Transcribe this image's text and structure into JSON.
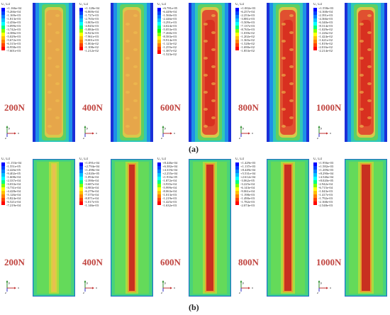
{
  "figure": {
    "caption_a": "(a)",
    "caption_b": "(b)",
    "legend_title": "U, U2",
    "axis_labels": {
      "y": "y",
      "x": "x",
      "z": "z"
    },
    "top_row": [
      {
        "load": "200N",
        "values": [
          "+1.166e-04",
          "-5.266e-04",
          "-1.169e-03",
          "-1.813e-03",
          "-2.456e-03",
          "-3.099e-03",
          "-3.742e-03",
          "-4.386e-03",
          "-5.029e-03",
          "-5.672e-03",
          "-6.315e-03",
          "-6.958e-03",
          "-7.601e-03"
        ]
      },
      {
        "load": "400N",
        "values": [
          "+1.128e-04",
          "-6.869e-04",
          "-1.727e-03",
          "-2.765e-03",
          "-3.805e-03",
          "-4.845e-03",
          "-5.884e-03",
          "-6.923e-03",
          "-7.961e-03",
          "-9.001e-03",
          "-1.004e-02",
          "-1.108e-02",
          "-1.212e-02"
        ]
      },
      {
        "load": "600N",
        "values": [
          "+6.781e-05",
          "-6.449e-04",
          "-1.560e-03",
          "-2.446e-03",
          "-3.291e-03",
          "-4.024e-03",
          "-5.053e-03",
          "-7.260e-03",
          "-8.583e-03",
          "-9.914e-03",
          "-1.123e-02",
          "-1.255e-02",
          "-1.387e-02",
          "-1.523e-02"
        ]
      },
      {
        "load": "800N",
        "values": [
          "+1.002e-03",
          "-6.257e-04",
          "-2.253e-03",
          "-3.881e-03",
          "-5.509e-03",
          "-7.137e-03",
          "-8.765e-03",
          "-1.039e-02",
          "-1.202e-02",
          "-1.365e-02",
          "-1.528e-02",
          "-1.690e-02",
          "-1.853e-02"
        ]
      },
      {
        "load": "1000N",
        "values": [
          "+1.558e-03",
          "-4.168e-04",
          "-2.391e-03",
          "-4.366e-03",
          "-6.340e-03",
          "-8.314e-03",
          "-1.029e-02",
          "-1.226e-02",
          "-1.424e-02",
          "-1.621e-02",
          "-1.819e-02",
          "-2.016e-02",
          "-2.214e-02"
        ]
      }
    ],
    "bottom_row": [
      {
        "load": "200N",
        "values": [
          "+1.153e-04",
          "-1.551e-05",
          "-2.426e-05",
          "-9.402e-05",
          "-1.608e-04",
          "-2.337e-04",
          "-3.033e-04",
          "-3.731e-04",
          "-4.428e-04",
          "-5.126e-04",
          "-5.824e-04",
          "-6.521e-04",
          "-7.219e-04"
        ]
      },
      {
        "load": "400N",
        "values": [
          "+1.091e-04",
          "+2.794e-04",
          "+1.498e-04",
          "+2.020e-05",
          "-1.094e-04",
          "-2.390e-04",
          "-3.687e-04",
          "-4.983e-04",
          "-6.279e-04",
          "-7.575e-04",
          "-8.871e-04",
          "-1.017e-03",
          "-1.146e-03"
        ]
      },
      {
        "load": "600N",
        "values": [
          "+8.446e-04",
          "+6.382e-04",
          "+4.319e-04",
          "+2.255e-04",
          "+1.916e-05",
          "-1.872e-04",
          "-3.935e-04",
          "-5.999e-04",
          "-8.063e-04",
          "-1.013e-03",
          "-1.219e-03",
          "-1.425e-03",
          "-1.632e-03"
        ]
      },
      {
        "load": "800N",
        "values": [
          "+1.429e-03",
          "+1.137e-03",
          "+8.449e-04",
          "+5.531e-04",
          "+2.612e-04",
          "-3.062e-05",
          "-3.225e-04",
          "-6.143e-04",
          "-9.061e-04",
          "-1.198e-03",
          "-1.490e-03",
          "-1.782e-03",
          "-2.074e-03"
        ]
      },
      {
        "load": "1000N",
        "values": [
          "+1.956e-03",
          "+1.582e-03",
          "+1.209e-03",
          "+8.290e-04",
          "+4.546e-04",
          "+8.020e-05",
          "-2.942e-04",
          "-6.715e-04",
          "-1.043e-03",
          "-1.417e-03",
          "-1.792e-03",
          "-2.168e-03",
          "-2.548e-03"
        ]
      }
    ]
  }
}
